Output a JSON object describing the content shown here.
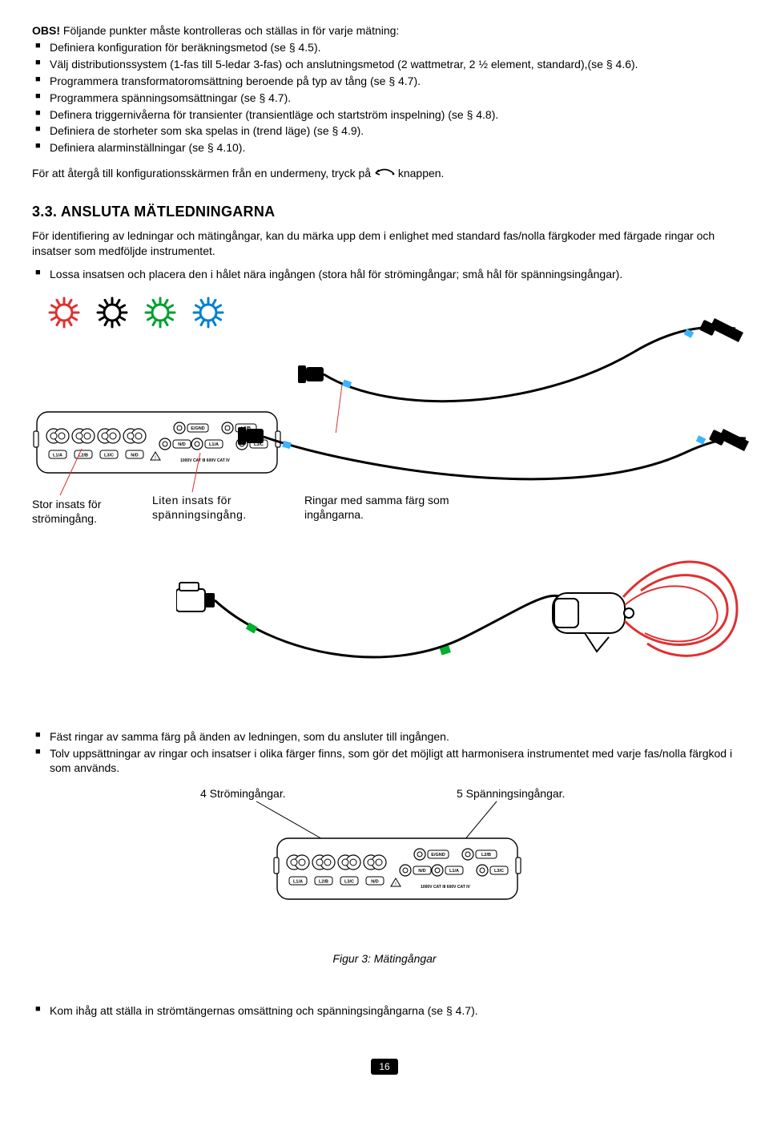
{
  "intro": {
    "prefix": "OBS!",
    "text": "Följande punkter måste kontrolleras och ställas in för varje mätning:"
  },
  "bullets1": [
    "Definiera konfiguration för beräkningsmetod (se § 4.5).",
    "Välj distributionssystem (1-fas till 5-ledar 3-fas) och anslutningsmetod (2 wattmetrar, 2 ½ element, standard),(se § 4.6).",
    "Programmera transformatoromsättning beroende på typ av tång (se § 4.7).",
    "Programmera spänningsomsättningar (se § 4.7).",
    "Definera triggernivåerna för transienter (transientläge och startström inspelning) (se § 4.8).",
    "Definiera de storheter som ska spelas in (trend läge) (se § 4.9).",
    "Definiera alarminställningar (se § 4.10)."
  ],
  "returnLine": {
    "before": "För att återgå till konfigurationsskärmen från en undermeny, tryck på",
    "after": "knappen."
  },
  "section": {
    "number": "3.3.",
    "title": "ANSLUTA MÄTLEDNINGARNA"
  },
  "para1": "För identifiering av ledningar och mätingångar, kan du märka upp dem i enlighet med standard fas/nolla färgkoder med färgade ringar och insatser som medföljde instrumentet.",
  "bullets2": [
    "Lossa insatsen och placera den i hålet nära ingången (stora hål för strömingångar; små hål för spänningsingångar)."
  ],
  "figureLabels": {
    "l1": "Stor insats för strömingång.",
    "l2": "Liten insats för spänningsingång.",
    "l3": "Ringar med samma färg som ingångarna."
  },
  "bullets3": [
    "Fäst ringar av samma färg på änden av ledningen, som du ansluter till ingången.",
    "Tolv uppsättningar av ringar och insatser i olika färger finns, som gör det möjligt att harmonisera instrumentet med varje fas/nolla färgkod i som används."
  ],
  "figure2": {
    "left": "4 Strömingångar.",
    "right": "5 Spänningsingångar.",
    "caption": "Figur 3: Mätingångar"
  },
  "bullets4": [
    "Kom ihåg att ställa in strömtängernas omsättning och spänningsingångarna (se § 4.7)."
  ],
  "deviceLabels": {
    "current": [
      "L1/A",
      "L2/B",
      "L3/C",
      "N/D"
    ],
    "voltage": [
      "N/D",
      "L1/A",
      "L3/C"
    ],
    "voltageTop": [
      "E/GND",
      "L2/B"
    ],
    "rating": "1000V CAT III        600V CAT IV"
  },
  "sunColors": [
    "#e03030",
    "#000000",
    "#00a030",
    "#0080d0"
  ],
  "pageNumber": "16"
}
